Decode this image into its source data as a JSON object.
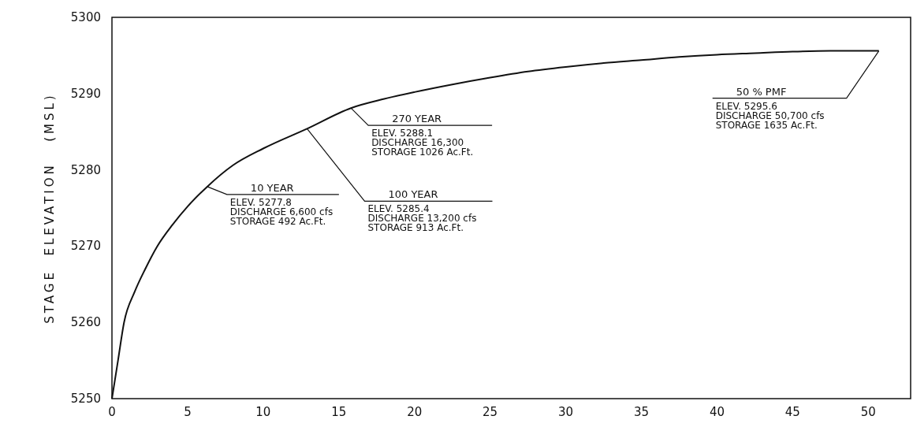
{
  "chart_data": {
    "type": "line",
    "ylabel": "STAGE  ELEVATION   (MSL)",
    "xlim": [
      0,
      52.8
    ],
    "ylim": [
      5250,
      5300
    ],
    "xticks": [
      0,
      5,
      10,
      15,
      20,
      25,
      30,
      35,
      40,
      45,
      50
    ],
    "yticks": [
      5250,
      5260,
      5270,
      5280,
      5290,
      5300
    ],
    "series": [
      {
        "color": "#111111",
        "x": [
          0,
          0.4,
          0.8,
          1.5,
          2.2,
          3,
          4,
          5,
          6.3,
          8,
          10,
          12.9,
          15.8,
          18,
          20,
          22.5,
          25,
          27.5,
          30,
          32.5,
          35,
          37.5,
          40,
          42.5,
          45,
          47.5,
          50.7
        ],
        "values": [
          5250,
          5255,
          5260,
          5264,
          5267,
          5270,
          5272.8,
          5275.2,
          5277.8,
          5280.6,
          5282.8,
          5285.4,
          5288.1,
          5289.3,
          5290.2,
          5291.2,
          5292.1,
          5292.9,
          5293.5,
          5294,
          5294.4,
          5294.8,
          5295.1,
          5295.3,
          5295.5,
          5295.6,
          5295.6
        ]
      }
    ],
    "marker": "none",
    "line_style": "solid",
    "annotations": [
      {
        "text": "10 YEAR\nELEV. 5277.8\nDISCHARGE 6,600 cfs\nSTORAGE 492 Ac.Ft.",
        "x": 6.3,
        "y": 5277.8
      },
      {
        "text": "100 YEAR\nELEV. 5285.4\nDISCHARGE 13,200 cfs\nSTORAGE 913 Ac.Ft.",
        "x": 12.9,
        "y": 5285.4
      },
      {
        "text": "270 YEAR\nELEV. 5288.1\nDISCHARGE 16,300\nSTORAGE 1026 Ac.Ft.",
        "x": 15.8,
        "y": 5288.1
      },
      {
        "text": "50 % PMF\nELEV. 5295.6\nDISCHARGE 50,700 cfs\nSTORAGE 1635 Ac.Ft.",
        "x": 50.7,
        "y": 5295.6
      }
    ]
  }
}
